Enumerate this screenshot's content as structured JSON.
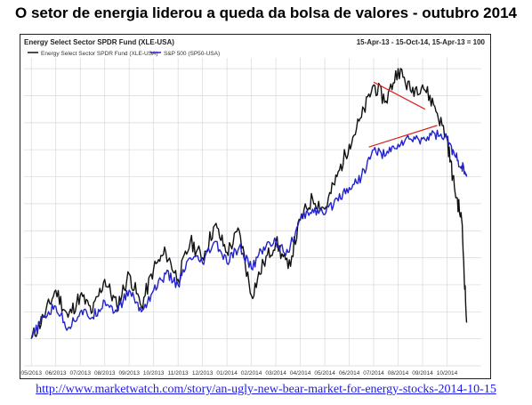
{
  "page": {
    "title": "O setor de energia liderou a queda da bolsa de valores - outubro 2014",
    "source_url": "http://www.marketwatch.com/story/an-ugly-new-bear-market-for-energy-stocks-2014-10-15"
  },
  "chart_data": {
    "type": "line",
    "title": "Energy Select Sector SPDR Fund (XLE-USA)",
    "subtitle": "15-Apr-13 - 15-Oct-14, 15-Apr-13 = 100",
    "xlabel": "",
    "ylabel": "",
    "grid": true,
    "legend_position": "top-left",
    "x_ticks": [
      "05/2013",
      "06/2013",
      "07/2013",
      "08/2013",
      "09/2013",
      "10/2013",
      "11/2013",
      "12/2013",
      "01/2014",
      "02/2014",
      "03/2014",
      "04/2014",
      "05/2014",
      "06/2014",
      "07/2014",
      "08/2014",
      "09/2014",
      "10/2014"
    ],
    "x": [
      0,
      0.5,
      1,
      1.5,
      2,
      2.5,
      3,
      3.5,
      4,
      4.5,
      5,
      5.5,
      6,
      6.5,
      7,
      7.5,
      8,
      8.5,
      9,
      9.5,
      10,
      10.5,
      11,
      11.5,
      12,
      12.5,
      13,
      13.5,
      14,
      14.5,
      15,
      15.5,
      16,
      16.5,
      17,
      17.3,
      17.6,
      17.8
    ],
    "series": [
      {
        "name": "Energy Select Sector SPDR Fund (XLE-USA)",
        "color": "#111111",
        "values": [
          100,
          104,
          109,
          104,
          108,
          105,
          111,
          106,
          112,
          106,
          113,
          116,
          111,
          118,
          115,
          121,
          116,
          120,
          108,
          114,
          118,
          113,
          122,
          126,
          124,
          130,
          136,
          141,
          147,
          144,
          150,
          146,
          147,
          143,
          137,
          128,
          122,
          103
        ]
      },
      {
        "name": "S&P 500 (SP50-USA)",
        "color": "#2222cc",
        "values": [
          100,
          104,
          106,
          102,
          105,
          104,
          107,
          105,
          109,
          105,
          109,
          112,
          110,
          115,
          114,
          118,
          114,
          117,
          113,
          117,
          118,
          116,
          122,
          124,
          123,
          126,
          128,
          130,
          135,
          134,
          136,
          137,
          137,
          138,
          137,
          134,
          132,
          130
        ]
      }
    ],
    "trendlines": [
      {
        "color": "#dd2222",
        "points": [
          [
            14.0,
            147.5
          ],
          [
            16.1,
            142.5
          ]
        ]
      },
      {
        "color": "#dd2222",
        "points": [
          [
            13.8,
            135.5
          ],
          [
            16.6,
            139.5
          ]
        ]
      }
    ],
    "ylim": [
      95,
      152
    ],
    "xlim": [
      -0.3,
      18.4
    ]
  }
}
